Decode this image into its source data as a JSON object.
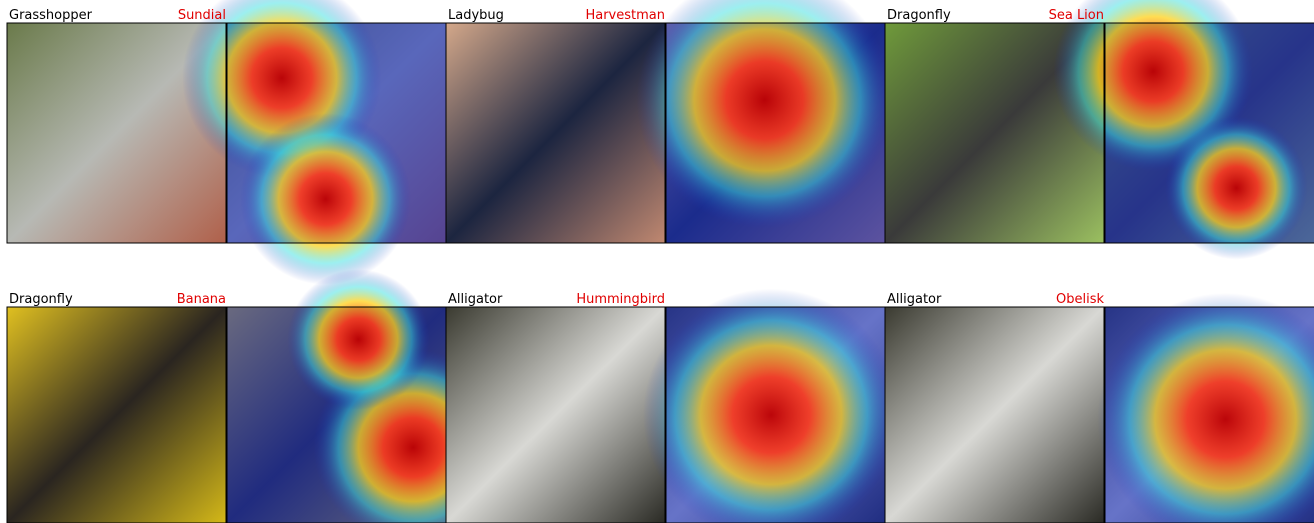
{
  "panels": [
    {
      "true_label": "Grasshopper",
      "predicted_label": "Sundial"
    },
    {
      "true_label": "Ladybug",
      "predicted_label": "Harvestman"
    },
    {
      "true_label": "Dragonfly",
      "predicted_label": "Sea Lion"
    },
    {
      "true_label": "Dragonfly",
      "predicted_label": "Banana"
    },
    {
      "true_label": "Alligator",
      "predicted_label": "Hummingbird"
    },
    {
      "true_label": "Alligator",
      "predicted_label": "Obelisk"
    }
  ]
}
